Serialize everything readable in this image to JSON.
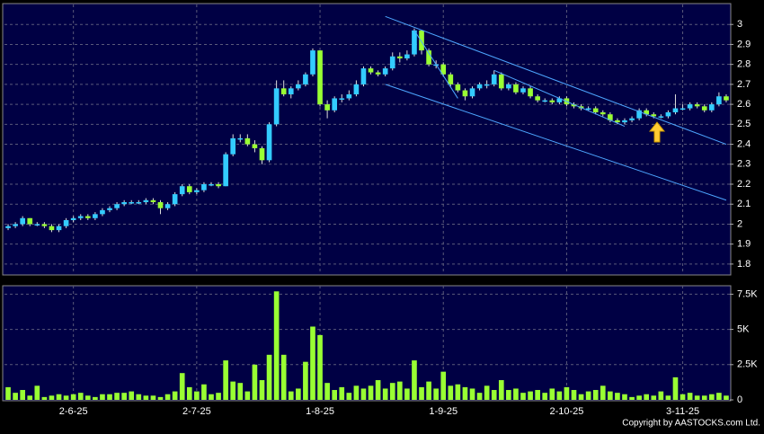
{
  "chart_data": {
    "type": "candlestick",
    "copyright": "Copyright by AASTOCKS.com Ltd.",
    "up_color": "#33ccff",
    "down_color": "#99ff33",
    "volume_color": "#99ff33",
    "trendline_color": "#4da6ff",
    "ylim": [
      1.75,
      3.1
    ],
    "yticks": [
      1.8,
      1.9,
      2,
      2.1,
      2.2,
      2.3,
      2.4,
      2.5,
      2.6,
      2.7,
      2.8,
      2.9,
      3
    ],
    "volume_ylim": [
      0,
      8100
    ],
    "volume_ticks": [
      0,
      {
        "value": 2500,
        "label": "2.5K"
      },
      {
        "value": 5000,
        "label": "5K"
      },
      {
        "value": 7500,
        "label": "7.5K"
      }
    ],
    "grid": true,
    "categories": [
      null,
      null,
      null,
      null,
      null,
      null,
      null,
      null,
      null,
      "2-6-25",
      null,
      null,
      null,
      null,
      null,
      null,
      null,
      null,
      null,
      null,
      null,
      null,
      null,
      null,
      null,
      null,
      "2-7-25",
      null,
      null,
      null,
      null,
      null,
      null,
      null,
      null,
      null,
      null,
      null,
      null,
      null,
      null,
      null,
      null,
      "1-8-25",
      null,
      null,
      null,
      null,
      null,
      null,
      null,
      null,
      null,
      null,
      null,
      null,
      null,
      null,
      null,
      null,
      "1-9-25",
      null,
      null,
      null,
      null,
      null,
      null,
      null,
      null,
      null,
      null,
      null,
      null,
      null,
      null,
      null,
      null,
      "2-10-25",
      null,
      null,
      null,
      null,
      null,
      null,
      null,
      null,
      null,
      null,
      null,
      null,
      null,
      null,
      null,
      "3-11-25",
      null,
      null,
      null,
      null,
      null,
      null
    ],
    "candles": [
      [
        1.98,
        2.0,
        1.97,
        1.99
      ],
      [
        1.99,
        2.01,
        1.98,
        2.0
      ],
      [
        2.0,
        2.04,
        1.99,
        2.03
      ],
      [
        2.03,
        2.03,
        1.99,
        2.0
      ],
      [
        2.0,
        2.01,
        1.99,
        2.0
      ],
      [
        2.0,
        2.01,
        1.98,
        1.99
      ],
      [
        1.99,
        2.0,
        1.96,
        1.97
      ],
      [
        1.97,
        2.0,
        1.96,
        1.99
      ],
      [
        1.99,
        2.03,
        1.98,
        2.02
      ],
      [
        2.02,
        2.04,
        2.01,
        2.03
      ],
      [
        2.03,
        2.05,
        2.02,
        2.04
      ],
      [
        2.04,
        2.05,
        2.02,
        2.03
      ],
      [
        2.03,
        2.06,
        2.02,
        2.05
      ],
      [
        2.05,
        2.08,
        2.04,
        2.07
      ],
      [
        2.07,
        2.09,
        2.06,
        2.08
      ],
      [
        2.08,
        2.11,
        2.07,
        2.1
      ],
      [
        2.1,
        2.12,
        2.09,
        2.11
      ],
      [
        2.11,
        2.12,
        2.1,
        2.11
      ],
      [
        2.11,
        2.12,
        2.1,
        2.11
      ],
      [
        2.11,
        2.13,
        2.1,
        2.12
      ],
      [
        2.12,
        2.13,
        2.1,
        2.11
      ],
      [
        2.11,
        2.12,
        2.05,
        2.08
      ],
      [
        2.08,
        2.11,
        2.07,
        2.1
      ],
      [
        2.1,
        2.16,
        2.09,
        2.15
      ],
      [
        2.15,
        2.2,
        2.14,
        2.19
      ],
      [
        2.19,
        2.2,
        2.15,
        2.16
      ],
      [
        2.16,
        2.18,
        2.15,
        2.17
      ],
      [
        2.17,
        2.21,
        2.16,
        2.2
      ],
      [
        2.2,
        2.21,
        2.19,
        2.2
      ],
      [
        2.2,
        2.21,
        2.18,
        2.19
      ],
      [
        2.19,
        2.36,
        2.19,
        2.35
      ],
      [
        2.35,
        2.45,
        2.34,
        2.43
      ],
      [
        2.43,
        2.45,
        2.41,
        2.43
      ],
      [
        2.43,
        2.45,
        2.39,
        2.4
      ],
      [
        2.4,
        2.42,
        2.36,
        2.38
      ],
      [
        2.38,
        2.39,
        2.3,
        2.32
      ],
      [
        2.32,
        2.51,
        2.31,
        2.5
      ],
      [
        2.5,
        2.72,
        2.49,
        2.68
      ],
      [
        2.68,
        2.72,
        2.64,
        2.65
      ],
      [
        2.65,
        2.69,
        2.63,
        2.68
      ],
      [
        2.68,
        2.72,
        2.67,
        2.7
      ],
      [
        2.7,
        2.76,
        2.69,
        2.75
      ],
      [
        2.75,
        2.88,
        2.74,
        2.87
      ],
      [
        2.87,
        2.87,
        2.59,
        2.6
      ],
      [
        2.6,
        2.62,
        2.53,
        2.57
      ],
      [
        2.57,
        2.64,
        2.56,
        2.63
      ],
      [
        2.63,
        2.65,
        2.61,
        2.63
      ],
      [
        2.63,
        2.67,
        2.62,
        2.65
      ],
      [
        2.65,
        2.72,
        2.64,
        2.7
      ],
      [
        2.7,
        2.79,
        2.69,
        2.78
      ],
      [
        2.78,
        2.79,
        2.75,
        2.76
      ],
      [
        2.76,
        2.77,
        2.74,
        2.75
      ],
      [
        2.75,
        2.79,
        2.74,
        2.78
      ],
      [
        2.78,
        2.86,
        2.77,
        2.84
      ],
      [
        2.84,
        2.86,
        2.81,
        2.83
      ],
      [
        2.83,
        2.87,
        2.82,
        2.85
      ],
      [
        2.85,
        2.98,
        2.84,
        2.97
      ],
      [
        2.97,
        2.97,
        2.85,
        2.87
      ],
      [
        2.87,
        2.88,
        2.79,
        2.8
      ],
      [
        2.8,
        2.82,
        2.78,
        2.8
      ],
      [
        2.8,
        2.81,
        2.74,
        2.75
      ],
      [
        2.75,
        2.76,
        2.69,
        2.7
      ],
      [
        2.7,
        2.71,
        2.66,
        2.67
      ],
      [
        2.67,
        2.68,
        2.62,
        2.64
      ],
      [
        2.64,
        2.69,
        2.63,
        2.68
      ],
      [
        2.68,
        2.71,
        2.67,
        2.7
      ],
      [
        2.7,
        2.72,
        2.68,
        2.7
      ],
      [
        2.7,
        2.77,
        2.69,
        2.75
      ],
      [
        2.75,
        2.76,
        2.67,
        2.68
      ],
      [
        2.68,
        2.71,
        2.67,
        2.7
      ],
      [
        2.7,
        2.71,
        2.65,
        2.66
      ],
      [
        2.66,
        2.69,
        2.65,
        2.68
      ],
      [
        2.68,
        2.69,
        2.63,
        2.64
      ],
      [
        2.64,
        2.65,
        2.61,
        2.62
      ],
      [
        2.62,
        2.63,
        2.61,
        2.62
      ],
      [
        2.62,
        2.63,
        2.6,
        2.61
      ],
      [
        2.61,
        2.64,
        2.6,
        2.63
      ],
      [
        2.63,
        2.64,
        2.59,
        2.6
      ],
      [
        2.6,
        2.61,
        2.58,
        2.59
      ],
      [
        2.59,
        2.6,
        2.57,
        2.58
      ],
      [
        2.58,
        2.59,
        2.57,
        2.58
      ],
      [
        2.58,
        2.59,
        2.55,
        2.56
      ],
      [
        2.56,
        2.57,
        2.54,
        2.55
      ],
      [
        2.55,
        2.56,
        2.51,
        2.52
      ],
      [
        2.52,
        2.53,
        2.5,
        2.51
      ],
      [
        2.51,
        2.53,
        2.5,
        2.52
      ],
      [
        2.52,
        2.54,
        2.51,
        2.53
      ],
      [
        2.53,
        2.58,
        2.52,
        2.57
      ],
      [
        2.57,
        2.58,
        2.54,
        2.55
      ],
      [
        2.55,
        2.56,
        2.53,
        2.54
      ],
      [
        2.54,
        2.55,
        2.53,
        2.54
      ],
      [
        2.54,
        2.57,
        2.53,
        2.56
      ],
      [
        2.56,
        2.65,
        2.55,
        2.58
      ],
      [
        2.58,
        2.6,
        2.57,
        2.58
      ],
      [
        2.58,
        2.61,
        2.57,
        2.6
      ],
      [
        2.6,
        2.61,
        2.58,
        2.59
      ],
      [
        2.59,
        2.6,
        2.56,
        2.57
      ],
      [
        2.57,
        2.61,
        2.56,
        2.6
      ],
      [
        2.6,
        2.66,
        2.59,
        2.64
      ],
      [
        2.64,
        2.65,
        2.61,
        2.62
      ]
    ],
    "volume": [
      900,
      500,
      700,
      300,
      1000,
      200,
      300,
      400,
      300,
      400,
      500,
      300,
      200,
      400,
      400,
      500,
      500,
      600,
      400,
      300,
      300,
      200,
      400,
      600,
      1900,
      900,
      600,
      1100,
      400,
      500,
      2800,
      1300,
      1200,
      600,
      2500,
      1400,
      3200,
      7700,
      3200,
      600,
      800,
      2700,
      5200,
      4600,
      1200,
      700,
      900,
      500,
      1000,
      800,
      1000,
      1400,
      800,
      1200,
      1300,
      800,
      2800,
      900,
      1300,
      800,
      2000,
      1000,
      1100,
      900,
      800,
      500,
      1000,
      700,
      1400,
      700,
      800,
      500,
      600,
      700,
      500,
      800,
      600,
      900,
      700,
      400,
      600,
      700,
      1000,
      600,
      500,
      400,
      200,
      300,
      400,
      300,
      600,
      300,
      1600,
      400,
      500,
      300,
      300,
      400,
      500,
      300
    ],
    "trendlines": [
      [
        52,
        3.04,
        99,
        2.4
      ],
      [
        52,
        2.7,
        99,
        2.12
      ],
      [
        56,
        2.97,
        62,
        2.63
      ],
      [
        67,
        2.77,
        85,
        2.49
      ]
    ]
  }
}
